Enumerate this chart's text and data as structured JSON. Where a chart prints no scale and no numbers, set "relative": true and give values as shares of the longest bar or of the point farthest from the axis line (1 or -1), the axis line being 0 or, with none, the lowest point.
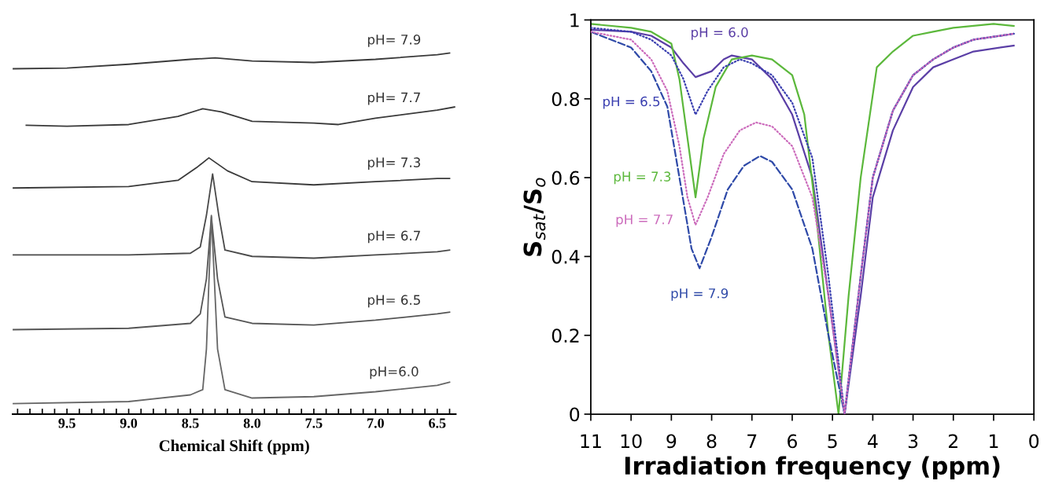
{
  "chart_data": [
    {
      "type": "line",
      "relative": true,
      "xlabel": "Chemical Shift (ppm)",
      "xlim": [
        9.94,
        6.35
      ],
      "xticks": [
        {
          "value": 9.9,
          "label": null
        },
        {
          "value": 9.8,
          "label": null
        },
        {
          "value": 9.7,
          "label": null
        },
        {
          "value": 9.6,
          "label": null
        },
        {
          "value": 9.5,
          "label": "9.5"
        },
        {
          "value": 9.4,
          "label": null
        },
        {
          "value": 9.3,
          "label": null
        },
        {
          "value": 9.2,
          "label": null
        },
        {
          "value": 9.1,
          "label": null
        },
        {
          "value": 9.0,
          "label": "9.0"
        },
        {
          "value": 8.9,
          "label": null
        },
        {
          "value": 8.8,
          "label": null
        },
        {
          "value": 8.7,
          "label": null
        },
        {
          "value": 8.6,
          "label": null
        },
        {
          "value": 8.5,
          "label": "8.5"
        },
        {
          "value": 8.4,
          "label": null
        },
        {
          "value": 8.3,
          "label": null
        },
        {
          "value": 8.2,
          "label": null
        },
        {
          "value": 8.1,
          "label": null
        },
        {
          "value": 8.0,
          "label": "8.0"
        },
        {
          "value": 7.9,
          "label": null
        },
        {
          "value": 7.8,
          "label": null
        },
        {
          "value": 7.7,
          "label": null
        },
        {
          "value": 7.6,
          "label": null
        },
        {
          "value": 7.5,
          "label": "7.5"
        },
        {
          "value": 7.4,
          "label": null
        },
        {
          "value": 7.3,
          "label": null
        },
        {
          "value": 7.2,
          "label": null
        },
        {
          "value": 7.1,
          "label": null
        },
        {
          "value": 7.0,
          "label": "7.0"
        },
        {
          "value": 6.9,
          "label": null
        },
        {
          "value": 6.8,
          "label": null
        },
        {
          "value": 6.7,
          "label": null
        },
        {
          "value": 6.6,
          "label": null
        },
        {
          "value": 6.5,
          "label": "6.5"
        },
        {
          "value": 6.4,
          "label": null
        }
      ],
      "tick_labels": "x",
      "grid": false,
      "legend": false,
      "series": [
        {
          "name": "pH= 7.9",
          "color": "#3a3a3a",
          "x": [
            9.94,
            9.5,
            9.0,
            8.5,
            8.3,
            8.0,
            7.5,
            7.0,
            6.5,
            6.4
          ],
          "values": [
            0.955,
            0.957,
            0.968,
            0.982,
            0.986,
            0.977,
            0.973,
            0.982,
            0.995,
            1.0
          ]
        },
        {
          "name": "pH= 7.7",
          "color": "#3a3a3a",
          "x": [
            9.83,
            9.5,
            9.0,
            8.6,
            8.4,
            8.25,
            8.0,
            7.5,
            7.3,
            7.0,
            6.5,
            6.36
          ],
          "values": [
            0.794,
            0.791,
            0.796,
            0.819,
            0.841,
            0.832,
            0.805,
            0.8,
            0.796,
            0.814,
            0.837,
            0.846
          ]
        },
        {
          "name": "pH= 7.3",
          "color": "#3a3a3a",
          "x": [
            9.94,
            9.0,
            8.6,
            8.45,
            8.35,
            8.2,
            8.0,
            7.5,
            7.0,
            6.5,
            6.4
          ],
          "values": [
            0.615,
            0.619,
            0.637,
            0.673,
            0.701,
            0.664,
            0.633,
            0.624,
            0.633,
            0.642,
            0.642
          ]
        },
        {
          "name": "pH= 6.7",
          "color": "#4a4a4a",
          "x": [
            9.94,
            9.0,
            8.5,
            8.42,
            8.37,
            8.32,
            8.27,
            8.22,
            8.0,
            7.5,
            7.0,
            6.5,
            6.4
          ],
          "values": [
            0.424,
            0.424,
            0.429,
            0.447,
            0.537,
            0.655,
            0.537,
            0.438,
            0.42,
            0.415,
            0.424,
            0.433,
            0.438
          ]
        },
        {
          "name": "pH= 6.5",
          "color": "#555555",
          "x": [
            9.94,
            9.0,
            8.5,
            8.42,
            8.37,
            8.33,
            8.28,
            8.22,
            8.0,
            7.5,
            7.0,
            6.5,
            6.4
          ],
          "values": [
            0.211,
            0.215,
            0.229,
            0.256,
            0.356,
            0.533,
            0.356,
            0.247,
            0.229,
            0.224,
            0.238,
            0.256,
            0.261
          ]
        },
        {
          "name": "pH=6.0",
          "color": "#666666",
          "x": [
            9.94,
            9.0,
            8.5,
            8.4,
            8.37,
            8.33,
            8.28,
            8.22,
            8.0,
            7.5,
            7.0,
            6.5,
            6.4
          ],
          "values": [
            0.0,
            0.006,
            0.025,
            0.04,
            0.156,
            0.537,
            0.156,
            0.04,
            0.016,
            0.02,
            0.034,
            0.052,
            0.061
          ]
        }
      ]
    },
    {
      "type": "line",
      "xlabel": "Irradiation frequency (ppm)",
      "ylabel": "S$_{sat}$/S$_{o}$",
      "xlim": [
        11,
        0
      ],
      "ylim": [
        0,
        1
      ],
      "xticks": [
        11,
        10,
        9,
        8,
        7,
        6,
        5,
        4,
        3,
        2,
        1,
        0
      ],
      "yticks": [
        0,
        0.2,
        0.4,
        0.6,
        0.8,
        1
      ],
      "grid": false,
      "legend": false,
      "series": [
        {
          "name": "pH = 6.0",
          "color": "#5b3fa6",
          "line_style": "solid",
          "x": [
            11,
            10,
            9.5,
            9,
            8.7,
            8.4,
            8,
            7.7,
            7.5,
            7,
            6.5,
            6,
            5.5,
            5.1,
            4.7,
            4.3,
            4,
            3.5,
            3,
            2.5,
            2,
            1.5,
            0.5
          ],
          "values": [
            0.975,
            0.97,
            0.96,
            0.93,
            0.89,
            0.855,
            0.87,
            0.9,
            0.91,
            0.9,
            0.85,
            0.76,
            0.6,
            0.3,
            0.0,
            0.3,
            0.55,
            0.72,
            0.83,
            0.88,
            0.9,
            0.92,
            0.935
          ]
        },
        {
          "name": "pH = 6.5",
          "color": "#3a3fb0",
          "line_style": "dotted",
          "x": [
            11,
            10,
            9.5,
            9,
            8.7,
            8.4,
            8.1,
            7.7,
            7.3,
            7,
            6.5,
            6,
            5.5,
            5.1,
            4.7,
            4.3,
            4,
            3.5,
            3,
            2.5,
            2,
            1.5,
            0.5
          ],
          "values": [
            0.98,
            0.97,
            0.95,
            0.91,
            0.85,
            0.76,
            0.82,
            0.88,
            0.9,
            0.89,
            0.86,
            0.79,
            0.65,
            0.35,
            0.0,
            0.35,
            0.6,
            0.77,
            0.86,
            0.9,
            0.93,
            0.95,
            0.965
          ]
        },
        {
          "name": "pH = 7.3",
          "color": "#5cb83c",
          "line_style": "solid",
          "x": [
            11,
            10,
            9.5,
            9,
            8.8,
            8.6,
            8.4,
            8.2,
            7.9,
            7.5,
            7,
            6.5,
            6,
            5.7,
            5.4,
            5.1,
            4.85,
            4.6,
            4.3,
            3.9,
            3.5,
            3,
            2.5,
            2,
            1,
            0.5
          ],
          "values": [
            0.99,
            0.98,
            0.97,
            0.94,
            0.85,
            0.7,
            0.55,
            0.7,
            0.83,
            0.9,
            0.91,
            0.9,
            0.86,
            0.76,
            0.5,
            0.2,
            0.0,
            0.3,
            0.6,
            0.88,
            0.92,
            0.96,
            0.97,
            0.98,
            0.99,
            0.985
          ]
        },
        {
          "name": "pH = 7.7",
          "color": "#cc6cbc",
          "line_style": "dotted",
          "x": [
            11,
            10,
            9.5,
            9.1,
            8.8,
            8.6,
            8.4,
            8.1,
            7.7,
            7.3,
            6.9,
            6.5,
            6,
            5.5,
            5.1,
            4.7,
            4.3,
            4,
            3.5,
            3,
            2.5,
            2,
            1.5,
            0.5
          ],
          "values": [
            0.97,
            0.95,
            0.9,
            0.82,
            0.68,
            0.55,
            0.48,
            0.55,
            0.66,
            0.72,
            0.74,
            0.73,
            0.68,
            0.55,
            0.3,
            0.0,
            0.35,
            0.6,
            0.77,
            0.86,
            0.9,
            0.93,
            0.95,
            0.965
          ]
        },
        {
          "name": "pH = 7.9",
          "color": "#2f4aa8",
          "line_style": "dashed",
          "x": [
            11,
            10,
            9.5,
            9.1,
            8.8,
            8.5,
            8.3,
            8,
            7.6,
            7.2,
            6.8,
            6.5,
            6,
            5.5,
            5.1,
            4.7,
            4.3,
            4,
            3.5,
            3,
            2.5,
            2,
            1.5,
            0.5
          ],
          "values": [
            0.97,
            0.93,
            0.87,
            0.78,
            0.6,
            0.42,
            0.37,
            0.45,
            0.57,
            0.63,
            0.655,
            0.64,
            0.57,
            0.42,
            0.2,
            0.0,
            0.35,
            0.6,
            0.77,
            0.86,
            0.9,
            0.93,
            0.95,
            0.965
          ]
        }
      ]
    }
  ]
}
